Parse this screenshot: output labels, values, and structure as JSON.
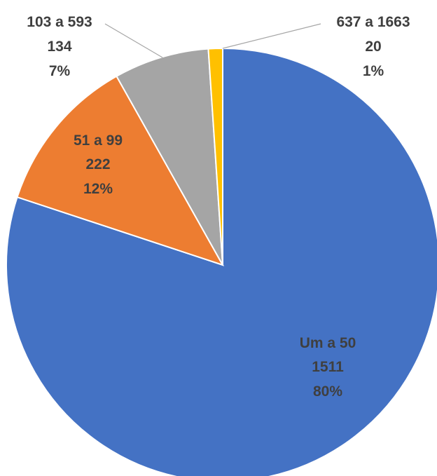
{
  "chart_data": {
    "type": "pie",
    "categories": [
      "Um a 50",
      "51 a 99",
      "103 a 593",
      "637 a 1663"
    ],
    "values": [
      1511,
      222,
      134,
      20
    ],
    "percent_labels": [
      "80%",
      "12%",
      "7%",
      "1%"
    ],
    "colors": [
      "#4472c4",
      "#ed7d31",
      "#a5a5a5",
      "#ffc000"
    ],
    "title": "",
    "legend": "none",
    "labels": [
      {
        "category": "Um a 50",
        "value": "1511",
        "percent": "80%"
      },
      {
        "category": "51 a 99",
        "value": "222",
        "percent": "12%"
      },
      {
        "category": "103 a 593",
        "value": "134",
        "percent": "7%"
      },
      {
        "category": "637 a 1663",
        "value": "20",
        "percent": "1%"
      }
    ]
  }
}
